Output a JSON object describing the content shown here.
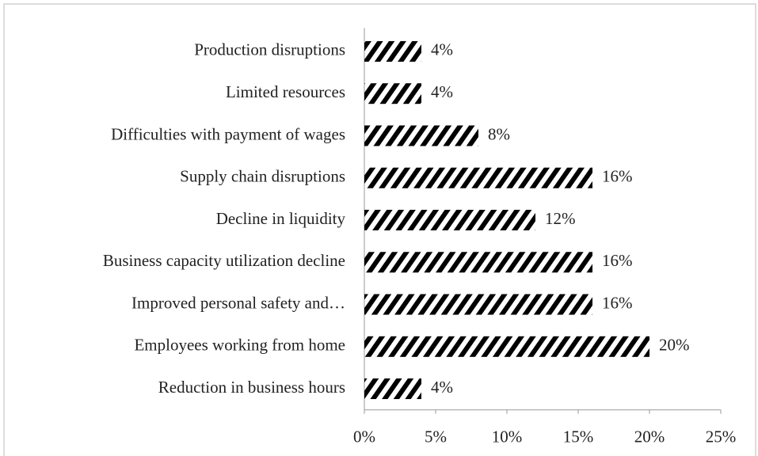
{
  "chart_data": {
    "type": "barh",
    "categories": [
      "Production disruptions",
      "Limited resources",
      "Difficulties with payment of wages",
      "Supply chain disruptions",
      "Decline in liquidity",
      "Business capacity utilization decline",
      "Improved personal safety and…",
      "Employees working from home",
      "Reduction in business hours"
    ],
    "values": [
      4,
      4,
      8,
      16,
      12,
      16,
      16,
      20,
      4
    ],
    "value_labels": [
      "4%",
      "4%",
      "8%",
      "16%",
      "12%",
      "16%",
      "16%",
      "20%",
      "4%"
    ],
    "color": "#000000",
    "xlim": [
      0,
      25
    ],
    "xticks": [
      {
        "value": 0,
        "label": "0%"
      },
      {
        "value": 5,
        "label": "5%"
      },
      {
        "value": 10,
        "label": "10%"
      },
      {
        "value": 15,
        "label": "15%"
      },
      {
        "value": 20,
        "label": "20%"
      },
      {
        "value": 25,
        "label": "25%"
      }
    ]
  }
}
